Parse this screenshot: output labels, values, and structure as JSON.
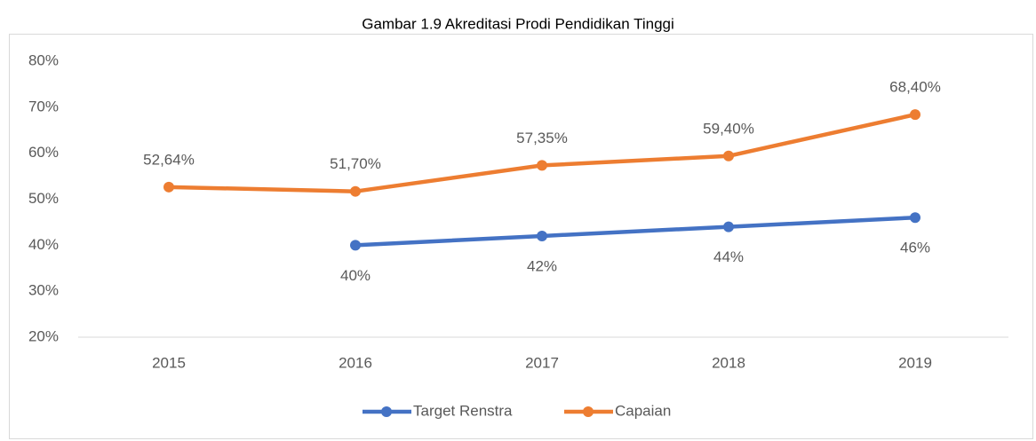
{
  "chart_data": {
    "type": "line",
    "title": "Gambar 1.9 Akreditasi Prodi Pendidikan Tinggi",
    "categories": [
      "2015",
      "2016",
      "2017",
      "2018",
      "2019"
    ],
    "series": [
      {
        "name": "Target Renstra",
        "color": "#4472c4",
        "values": [
          null,
          40,
          42,
          44,
          46
        ],
        "value_labels": [
          null,
          "40%",
          "42%",
          "44%",
          "46%"
        ]
      },
      {
        "name": "Capaian",
        "color": "#ed7d31",
        "values": [
          52.64,
          51.7,
          57.35,
          59.4,
          68.4
        ],
        "value_labels": [
          "52,64%",
          "51,70%",
          "57,35%",
          "59,40%",
          "68,40%"
        ]
      }
    ],
    "ylim": [
      20,
      80
    ],
    "yticks": [
      {
        "value": 20,
        "label": "20%"
      },
      {
        "value": 30,
        "label": "30%"
      },
      {
        "value": 40,
        "label": "40%"
      },
      {
        "value": 50,
        "label": "50%"
      },
      {
        "value": 60,
        "label": "60%"
      },
      {
        "value": 70,
        "label": "70%"
      },
      {
        "value": 80,
        "label": "80%"
      }
    ],
    "grid": false,
    "legend": "bottom"
  }
}
